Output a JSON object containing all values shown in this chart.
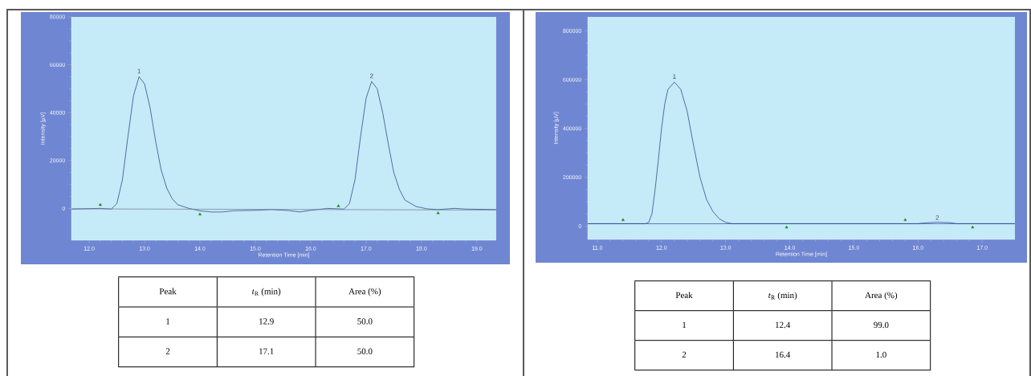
{
  "chart_data": [
    {
      "type": "line",
      "xlabel": "Retention Time [min]",
      "ylabel": "Intensity [µV]",
      "xlim": [
        11.68,
        19.35
      ],
      "ylim": [
        -13300,
        80000
      ],
      "xticks": [
        {
          "value": 12,
          "label": "12.0"
        },
        {
          "value": 13,
          "label": "13.0"
        },
        {
          "value": 14,
          "label": "14.0"
        },
        {
          "value": 15,
          "label": "15.0"
        },
        {
          "value": 16,
          "label": "16.0"
        },
        {
          "value": 17,
          "label": "17.0"
        },
        {
          "value": 18,
          "label": "18.0"
        },
        {
          "value": 19,
          "label": "19.0"
        }
      ],
      "yticks": [
        0,
        20000,
        40000,
        60000,
        80000
      ],
      "series": [
        {
          "type": "line",
          "color": "#1f3a7a",
          "x": [
            11.68,
            12.2,
            12.4,
            12.5,
            12.6,
            12.7,
            12.8,
            12.9,
            13.0,
            13.1,
            13.2,
            13.3,
            13.4,
            13.5,
            13.6,
            13.8,
            14.0,
            14.2,
            14.4,
            14.6,
            15.0,
            15.3,
            15.6,
            15.8,
            16.0,
            16.3,
            16.6,
            16.7,
            16.8,
            16.9,
            17.0,
            17.1,
            17.2,
            17.3,
            17.4,
            17.5,
            17.6,
            17.7,
            17.9,
            18.1,
            18.3,
            18.6,
            18.8,
            19.35
          ],
          "values": [
            -300,
            0,
            -300,
            2000,
            12000,
            30000,
            47000,
            55000,
            52000,
            42000,
            28000,
            16000,
            8500,
            4000,
            1500,
            0,
            -1000,
            -1500,
            -1500,
            -1000,
            -800,
            -500,
            -900,
            -1500,
            -800,
            0,
            -300,
            2000,
            12000,
            30000,
            46000,
            53000,
            50000,
            40000,
            27000,
            15000,
            8000,
            3500,
            800,
            -200,
            -500,
            0,
            -300,
            -500
          ]
        },
        {
          "type": "line",
          "color": "#6b7a8f",
          "x": [
            11.68,
            19.35
          ],
          "values": [
            -200,
            -700
          ]
        },
        {
          "type": "scatter",
          "marker": "triangle",
          "color": "#1a8a1a",
          "x": [
            12.2,
            14.0,
            16.5,
            18.3
          ],
          "values": [
            1500,
            -2500,
            1000,
            -2000
          ]
        }
      ],
      "annotations": [
        {
          "text": "1",
          "x": 12.9,
          "y": 56000
        },
        {
          "text": "2",
          "x": 17.1,
          "y": 54000
        }
      ]
    },
    {
      "type": "other",
      "annotations": [
        "Peak",
        "*t*$_{R}$ (min)",
        "Area (%)",
        "1",
        "12.9",
        "50.0",
        "2",
        "17.1",
        "50.0"
      ]
    },
    {
      "type": "line",
      "xlabel": "Retention Time [min]",
      "ylabel": "Intensity [µV]",
      "xlim": [
        10.85,
        17.51
      ],
      "ylim": [
        -54500,
        857000
      ],
      "xticks": [
        {
          "value": 11,
          "label": "11.0"
        },
        {
          "value": 12,
          "label": "12.0"
        },
        {
          "value": 13,
          "label": "13.0"
        },
        {
          "value": 14,
          "label": "14.0"
        },
        {
          "value": 15,
          "label": "15.0"
        },
        {
          "value": 16,
          "label": "16.0"
        },
        {
          "value": 17,
          "label": "17.0"
        }
      ],
      "yticks": [
        0,
        200000,
        400000,
        600000,
        800000
      ],
      "series": [
        {
          "type": "line",
          "color": "#1f3a7a",
          "x": [
            10.85,
            11.75,
            11.8,
            11.85,
            11.9,
            11.95,
            12.0,
            12.05,
            12.1,
            12.2,
            12.3,
            12.4,
            12.5,
            12.6,
            12.7,
            12.8,
            12.9,
            13.0,
            13.1,
            14.0,
            16.0,
            16.1,
            16.3,
            16.5,
            16.6,
            17.51
          ],
          "values": [
            10000,
            10000,
            15000,
            50000,
            150000,
            270000,
            400000,
            500000,
            560000,
            590000,
            560000,
            470000,
            330000,
            200000,
            110000,
            60000,
            30000,
            15000,
            10000,
            10000,
            10000,
            13000,
            16000,
            14000,
            10000,
            10000
          ]
        },
        {
          "type": "line",
          "color": "#1f3a9a",
          "x": [
            10.85,
            17.51
          ],
          "values": [
            10000,
            10000
          ]
        },
        {
          "type": "scatter",
          "marker": "triangle",
          "color": "#1a8a1a",
          "x": [
            11.4,
            13.95,
            15.8,
            16.85
          ],
          "values": [
            25000,
            -5000,
            25000,
            -5000
          ]
        }
      ],
      "annotations": [
        {
          "text": "1",
          "x": 12.2,
          "y": 600000
        },
        {
          "text": "2",
          "x": 16.3,
          "y": 22000
        }
      ]
    },
    {
      "type": "other",
      "annotations": [
        "Peak",
        "*t*$_{R}$ (min)",
        "Area (%)",
        "1",
        "12.4",
        "99.0",
        "2",
        "16.4",
        "1.0"
      ]
    }
  ]
}
